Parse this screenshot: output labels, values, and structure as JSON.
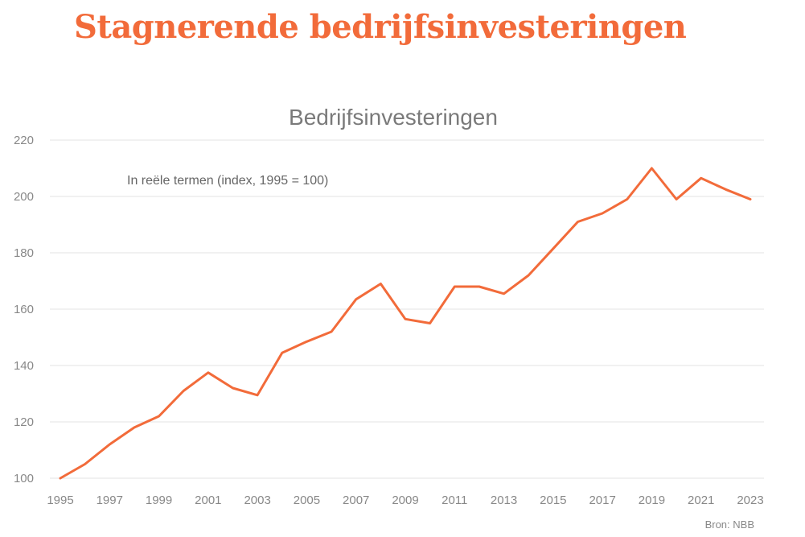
{
  "headline": "Stagnerende bedrijfsinvesteringen",
  "source": "Bron: NBB",
  "colors": {
    "accent": "#f26b3a",
    "grid": "#e3e3e3",
    "text": "#888888"
  },
  "chart_data": {
    "type": "line",
    "title": "Bedrijfsinvesteringen",
    "annotation": "In reële termen (index, 1995 = 100)",
    "xlabel": "",
    "ylabel": "",
    "ylim": [
      100,
      220
    ],
    "yticks": [
      100,
      120,
      140,
      160,
      180,
      200,
      220
    ],
    "xticks": [
      1995,
      1997,
      1999,
      2001,
      2003,
      2005,
      2007,
      2009,
      2011,
      2013,
      2015,
      2017,
      2019,
      2021,
      2023
    ],
    "grid": true,
    "x": [
      1995,
      1996,
      1997,
      1998,
      1999,
      2000,
      2001,
      2002,
      2003,
      2004,
      2005,
      2006,
      2007,
      2008,
      2009,
      2010,
      2011,
      2012,
      2013,
      2014,
      2015,
      2016,
      2017,
      2018,
      2019,
      2020,
      2021,
      2022,
      2023
    ],
    "series": [
      {
        "values": [
          100,
          105,
          112,
          118,
          122,
          131,
          137.5,
          132,
          129.5,
          144.5,
          148.5,
          152,
          163.5,
          169,
          156.5,
          155,
          168,
          168,
          165.5,
          172,
          181.5,
          191,
          194,
          199,
          210,
          199,
          206.5,
          202.5,
          199
        ]
      }
    ]
  }
}
